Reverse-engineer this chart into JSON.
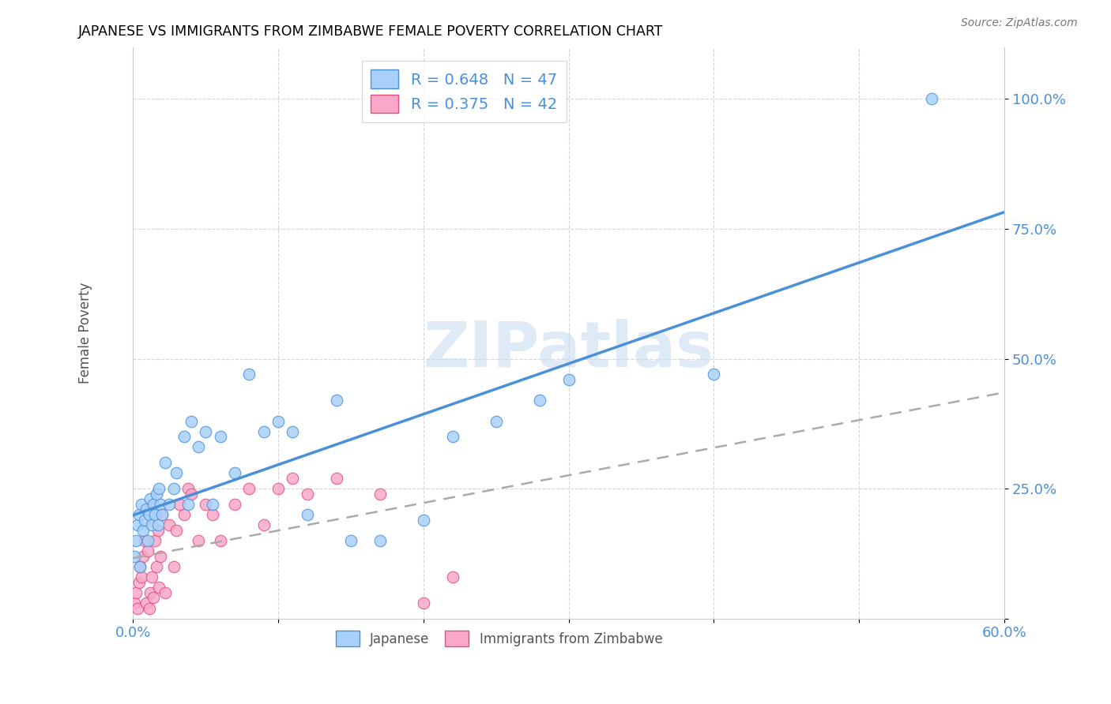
{
  "title": "JAPANESE VS IMMIGRANTS FROM ZIMBABWE FEMALE POVERTY CORRELATION CHART",
  "source": "Source: ZipAtlas.com",
  "ylabel": "Female Poverty",
  "x_min": 0.0,
  "x_max": 0.6,
  "y_min": 0.0,
  "y_max": 1.1,
  "x_ticks": [
    0.0,
    0.1,
    0.2,
    0.3,
    0.4,
    0.5,
    0.6
  ],
  "x_tick_labels": [
    "0.0%",
    "",
    "",
    "",
    "",
    "",
    "60.0%"
  ],
  "y_ticks": [
    0.0,
    0.25,
    0.5,
    0.75,
    1.0
  ],
  "y_tick_labels_right": [
    "",
    "25.0%",
    "50.0%",
    "75.0%",
    "100.0%"
  ],
  "blue_R": 0.648,
  "blue_N": 47,
  "pink_R": 0.375,
  "pink_N": 42,
  "blue_color": "#A8D0F8",
  "pink_color": "#F9A8C9",
  "blue_line_color": "#4A90D9",
  "pink_line_color": "#E05080",
  "gray_dash_color": "#AAAAAA",
  "tick_label_color": "#4A90D9",
  "watermark_color": "#C8DCF0",
  "legend_japanese": "Japanese",
  "legend_zimbabwe": "Immigrants from Zimbabwe",
  "japanese_x": [
    0.001,
    0.002,
    0.003,
    0.004,
    0.005,
    0.006,
    0.007,
    0.008,
    0.009,
    0.01,
    0.011,
    0.012,
    0.013,
    0.014,
    0.015,
    0.016,
    0.017,
    0.018,
    0.019,
    0.02,
    0.022,
    0.025,
    0.028,
    0.03,
    0.035,
    0.038,
    0.04,
    0.045,
    0.05,
    0.055,
    0.06,
    0.07,
    0.08,
    0.09,
    0.1,
    0.11,
    0.12,
    0.14,
    0.15,
    0.17,
    0.2,
    0.22,
    0.25,
    0.28,
    0.3,
    0.4,
    0.55
  ],
  "japanese_y": [
    0.12,
    0.15,
    0.18,
    0.2,
    0.1,
    0.22,
    0.17,
    0.19,
    0.21,
    0.15,
    0.2,
    0.23,
    0.18,
    0.22,
    0.2,
    0.24,
    0.18,
    0.25,
    0.22,
    0.2,
    0.3,
    0.22,
    0.25,
    0.28,
    0.35,
    0.22,
    0.38,
    0.33,
    0.36,
    0.22,
    0.35,
    0.28,
    0.47,
    0.36,
    0.38,
    0.36,
    0.2,
    0.42,
    0.15,
    0.15,
    0.19,
    0.35,
    0.38,
    0.42,
    0.46,
    0.47,
    1.0
  ],
  "zimbabwe_x": [
    0.001,
    0.002,
    0.003,
    0.004,
    0.005,
    0.006,
    0.007,
    0.008,
    0.009,
    0.01,
    0.011,
    0.012,
    0.013,
    0.014,
    0.015,
    0.016,
    0.017,
    0.018,
    0.019,
    0.02,
    0.022,
    0.025,
    0.028,
    0.03,
    0.032,
    0.035,
    0.038,
    0.04,
    0.045,
    0.05,
    0.055,
    0.06,
    0.07,
    0.08,
    0.09,
    0.1,
    0.11,
    0.12,
    0.14,
    0.17,
    0.2,
    0.22
  ],
  "zimbabwe_y": [
    0.03,
    0.05,
    0.02,
    0.07,
    0.1,
    0.08,
    0.12,
    0.15,
    0.03,
    0.13,
    0.02,
    0.05,
    0.08,
    0.04,
    0.15,
    0.1,
    0.17,
    0.06,
    0.12,
    0.2,
    0.05,
    0.18,
    0.1,
    0.17,
    0.22,
    0.2,
    0.25,
    0.24,
    0.15,
    0.22,
    0.2,
    0.15,
    0.22,
    0.25,
    0.18,
    0.25,
    0.27,
    0.24,
    0.27,
    0.24,
    0.03,
    0.08
  ]
}
